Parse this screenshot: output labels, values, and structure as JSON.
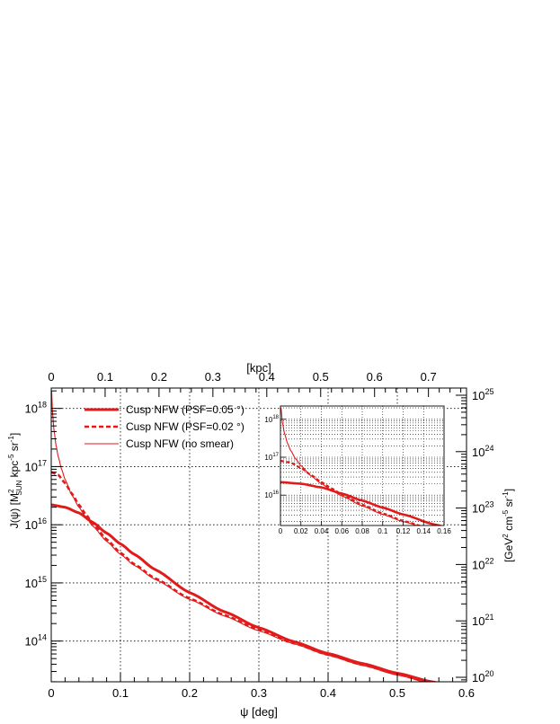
{
  "chart_data": [
    {
      "type": "line",
      "title": "",
      "xlabel": "ψ [deg]",
      "ylabel_parts": [
        "J(ψ) [M",
        "2",
        "SUN",
        " kpc",
        "-5",
        " sr",
        "-1",
        "]"
      ],
      "top_axis_label": "[kpc]",
      "right_axis_label_parts": [
        "[GeV",
        "2",
        " cm",
        "-5",
        " sr",
        "-1",
        "]"
      ],
      "xlim": [
        0,
        0.6
      ],
      "ylim_log10": [
        13.3,
        18.35
      ],
      "x_ticks": [
        "0",
        "0.1",
        "0.2",
        "0.3",
        "0.4",
        "0.5",
        "0.6"
      ],
      "y_tick_exponents": [
        "14",
        "15",
        "16",
        "17",
        "18"
      ],
      "top_ticks": [
        "0",
        "0.1",
        "0.2",
        "0.3",
        "0.4",
        "0.5",
        "0.6",
        "0.7"
      ],
      "right_tick_exponents": [
        "20",
        "21",
        "22",
        "23",
        "24",
        "25"
      ],
      "grid": true,
      "log_y": true,
      "legend_position": "top-left",
      "series": [
        {
          "name": "Cusp NFW (PSF=0.05 °)",
          "style": "thick",
          "x": [
            0,
            0.02,
            0.04,
            0.06,
            0.08,
            0.1,
            0.12,
            0.15,
            0.2,
            0.25,
            0.3,
            0.35,
            0.4,
            0.45,
            0.5,
            0.55,
            0.6
          ],
          "y": [
            2.2e+16,
            2e+16,
            1.6e+16,
            1.1e+16,
            7200000000000000.0,
            4700000000000000.0,
            3100000000000000.0,
            1700000000000000.0,
            680000000000000.0,
            320000000000000.0,
            170000000000000.0,
            98000000000000.0,
            61000000000000.0,
            41000000000000.0,
            28000000000000.0,
            20000000000000.0,
            14500000000000.0
          ]
        },
        {
          "name": "Cusp NFW (PSF=0.02 °)",
          "style": "dashed",
          "x": [
            0,
            0.01,
            0.02,
            0.03,
            0.04,
            0.05,
            0.06,
            0.08,
            0.1,
            0.12,
            0.15,
            0.2,
            0.25,
            0.3,
            0.35,
            0.4,
            0.45,
            0.5,
            0.55,
            0.6
          ],
          "y": [
            8e+16,
            7.2e+16,
            5.2e+16,
            3.4e+16,
            2.2e+16,
            1.5e+16,
            1.05e+16,
            5600000000000000.0,
            3300000000000000.0,
            2100000000000000.0,
            1200000000000000.0,
            540000000000000.0,
            280000000000000.0,
            155000000000000.0,
            92000000000000.0,
            58000000000000.0,
            39000000000000.0,
            27000000000000.0,
            19000000000000.0,
            14000000000000.0
          ]
        },
        {
          "name": "Cusp NFW (no smear)",
          "style": "thin",
          "x": [
            0.0005,
            0.002,
            0.004,
            0.007,
            0.01,
            0.015,
            0.02,
            0.03,
            0.04,
            0.05,
            0.06,
            0.08,
            0.1,
            0.12,
            0.15,
            0.2,
            0.25,
            0.3,
            0.35,
            0.4,
            0.45,
            0.5,
            0.55,
            0.6
          ],
          "y": [
            2e+18,
            8e+17,
            4.2e+17,
            2.3e+17,
            1.5e+17,
            9e+16,
            6e+16,
            3.2e+16,
            2e+16,
            1.35e+16,
            9500000000000000.0,
            5200000000000000.0,
            3100000000000000.0,
            2000000000000000.0,
            1150000000000000.0,
            520000000000000.0,
            270000000000000.0,
            150000000000000.0,
            90000000000000.0,
            57000000000000.0,
            38000000000000.0,
            26000000000000.0,
            18500000000000.0,
            13500000000000.0
          ]
        }
      ]
    },
    {
      "type": "line",
      "title": "",
      "inset": true,
      "xlim": [
        0,
        0.16
      ],
      "ylim_log10": [
        15.2,
        18.35
      ],
      "x_ticks": [
        "0",
        "0.02",
        "0.04",
        "0.06",
        "0.08",
        "0.1",
        "0.12",
        "0.14",
        "0.16"
      ],
      "y_tick_exponents": [
        "16",
        "17",
        "18"
      ],
      "log_y": true,
      "grid": true,
      "series_refs": [
        "Cusp NFW (PSF=0.05 °)",
        "Cusp NFW (PSF=0.02 °)",
        "Cusp NFW (no smear)"
      ]
    }
  ],
  "colors": {
    "series": "#e21a1a",
    "axis": "#000000",
    "grid": "#000000"
  }
}
